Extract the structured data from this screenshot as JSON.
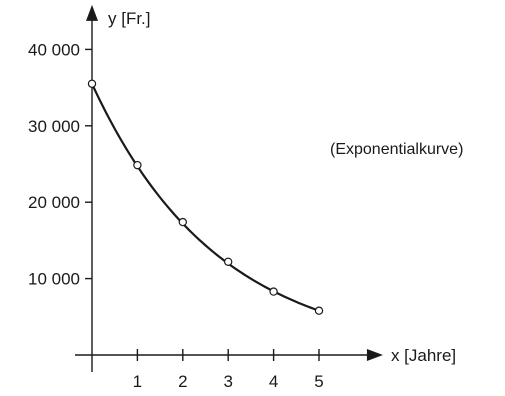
{
  "chart_data": {
    "type": "line",
    "x": [
      0,
      1,
      2,
      3,
      4,
      5
    ],
    "series": [
      {
        "values": [
          35500,
          24850,
          17400,
          12200,
          8300,
          5800
        ]
      }
    ],
    "xlabel": "x [Jahre]",
    "ylabel": "y [Fr.]",
    "annotation": "(Exponentialkurve)",
    "x_ticks": [
      "1",
      "2",
      "3",
      "4",
      "5"
    ],
    "y_ticks": [
      "10 000",
      "20 000",
      "30 000",
      "40 000"
    ],
    "y_tick_values": [
      10000,
      20000,
      30000,
      40000
    ],
    "x_tick_values": [
      1,
      2,
      3,
      4,
      5
    ],
    "xlim": [
      0,
      6.1
    ],
    "ylim": [
      0,
      44000
    ],
    "grid": false,
    "markers": "open-circle",
    "line_color": "#1a1a1a"
  }
}
